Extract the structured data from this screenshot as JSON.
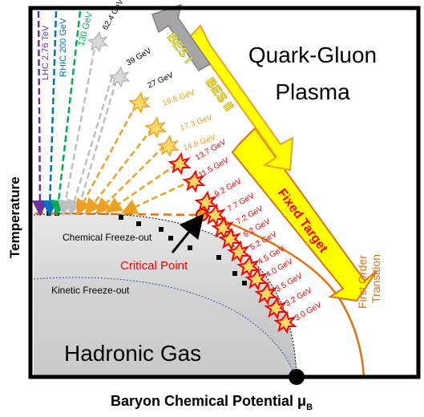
{
  "axes": {
    "x_label": "Baryon Chemical Potential μ",
    "x_label_sub": "B",
    "y_label": "Temperature"
  },
  "phases": {
    "qgp_line1": "Quark-Gluon",
    "qgp_line2": "Plasma",
    "hadronic": "Hadronic Gas"
  },
  "curves": {
    "chemical_freezeout": "Chemical Freeze-out",
    "kinetic_freezeout": "Kinetic Freeze-out",
    "critical_point": "Critical Point",
    "first_order_line1": "First Order",
    "first_order_line2": "Transition"
  },
  "programs": {
    "bes1": "BES I",
    "bes2": "BES II",
    "fixed_target": "Fixed Target"
  },
  "colliders": [
    {
      "label": "LHC 2.76 TeV",
      "color": "#7030a0"
    },
    {
      "label": "RHIC 200 GeV",
      "color": "#0070c0"
    },
    {
      "label": "130 GeV",
      "color": "#00b050"
    }
  ],
  "energies": {
    "grey": [
      "62.4 GeV",
      "39 GeV",
      "27 GeV"
    ],
    "orange": [
      "19.6 GeV",
      "17.3 GeV",
      "14.6 GeV"
    ],
    "red": [
      "13.7 GeV",
      "11.5 GeV",
      "9.2 GeV",
      "7.7 GeV",
      "7.2 GeV",
      "6.2 GeV",
      "5.2 GeV",
      "4.5 GeV",
      "4.0 GeV",
      "3.5 GeV",
      "3.2 GeV",
      "3.0 GeV"
    ]
  },
  "colors": {
    "orange": "#f0a020",
    "dark_orange": "#e07010",
    "red": "#ff0000",
    "grey": "#bfbfbf",
    "yellow": "#ffff00"
  }
}
